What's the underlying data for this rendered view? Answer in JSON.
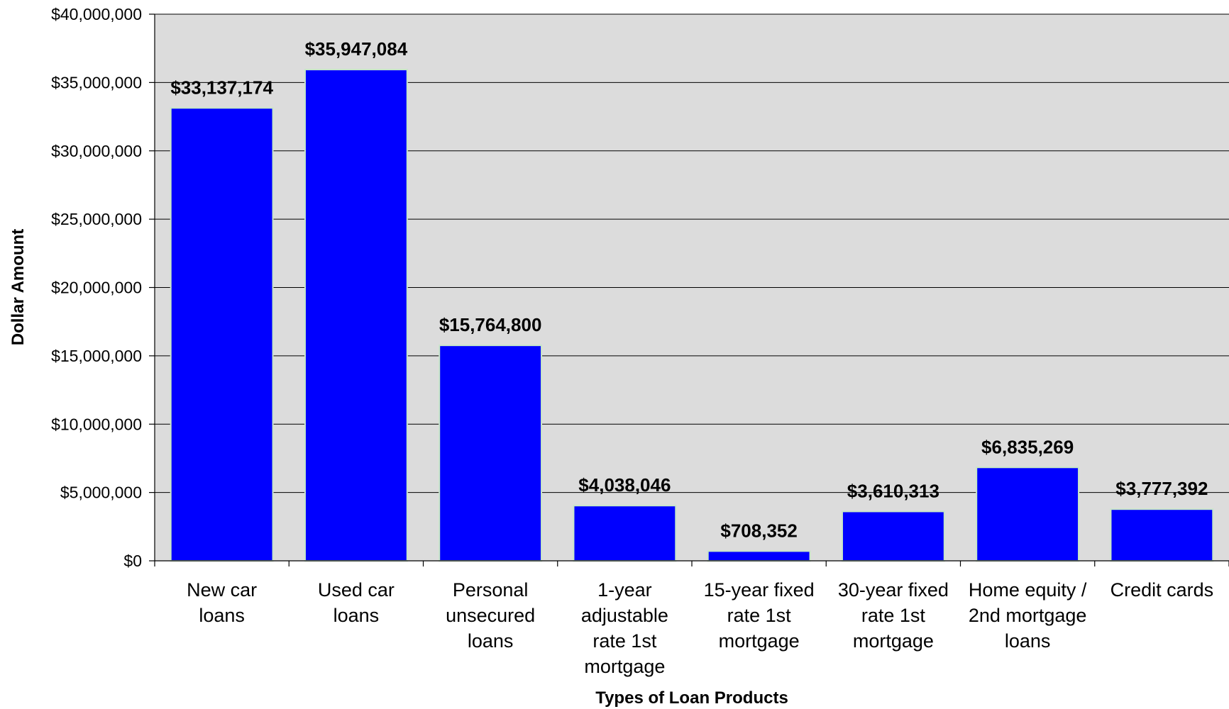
{
  "chart_data": {
    "type": "bar",
    "title": "",
    "xlabel": "Types of Loan Products",
    "ylabel": "Dollar Amount",
    "ylim": [
      0,
      40000000
    ],
    "ytick_step": 5000000,
    "yticks": [
      "$0",
      "$5,000,000",
      "$10,000,000",
      "$15,000,000",
      "$20,000,000",
      "$25,000,000",
      "$30,000,000",
      "$35,000,000",
      "$40,000,000"
    ],
    "grid": true,
    "legend": "none",
    "categories": [
      [
        "New car",
        "loans"
      ],
      [
        "Used car",
        "loans"
      ],
      [
        "Personal",
        "unsecured",
        "loans"
      ],
      [
        "1-year",
        "adjustable",
        "rate 1st",
        "mortgage"
      ],
      [
        "15-year fixed",
        "rate 1st",
        "mortgage"
      ],
      [
        "30-year fixed",
        "rate 1st",
        "mortgage"
      ],
      [
        "Home equity /",
        "2nd mortgage",
        "loans"
      ],
      [
        "Credit cards"
      ]
    ],
    "values": [
      33137174,
      35947084,
      15764800,
      4038046,
      708352,
      3610313,
      6835269,
      3777392
    ],
    "data_labels": [
      "$33,137,174",
      "$35,947,084",
      "$15,764,800",
      "$4,038,046",
      "$708,352",
      "$3,610,313",
      "$6,835,269",
      "$3,777,392"
    ],
    "colors": {
      "bar": "#0000ff",
      "bar_edge": "#c8e6c8",
      "plot_bg": "#dcdcdc",
      "grid": "#000000"
    }
  }
}
